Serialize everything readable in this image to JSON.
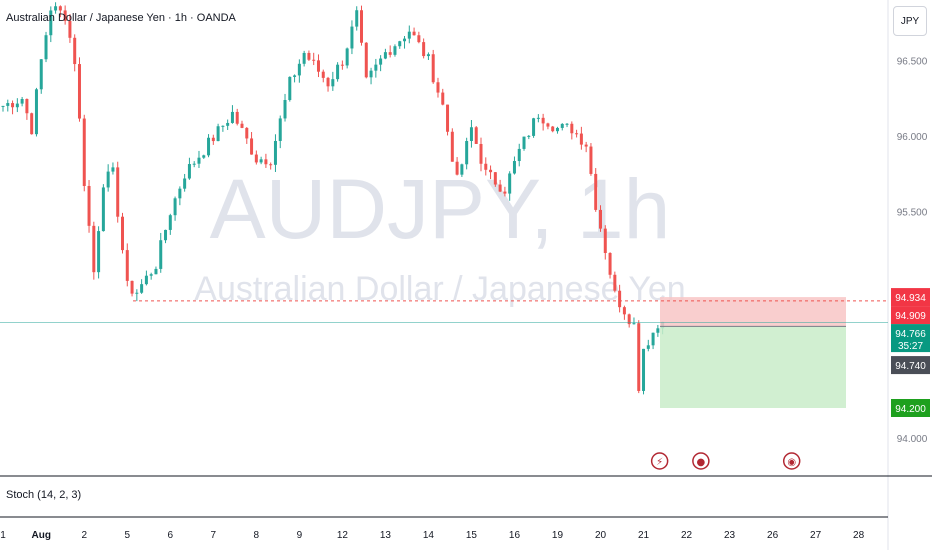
{
  "header": {
    "title": "Australian Dollar / Japanese Yen · 1h · OANDA"
  },
  "currency_button": {
    "label": "JPY"
  },
  "indicator": {
    "label": "Stoch (14, 2, 3)"
  },
  "colors": {
    "up": "#26a69a",
    "down": "#ef5350",
    "watermark": "#e0e3eb",
    "stop_zone": "#f8c5c5",
    "target_zone": "#c9ecc9",
    "dashed_line": "#ef5350",
    "current_line": "#26a69a",
    "label_red": "#f23645",
    "label_teal": "#089981",
    "label_dark": "#4a4e57",
    "label_green": "#1ea01e"
  },
  "chart_data": {
    "type": "candlestick",
    "symbol": "AUDJPY",
    "interval": "1h",
    "watermark_symbol": "AUDJPY, 1h",
    "watermark_name": "Australian Dollar / Japanese Yen",
    "y_ticks": [
      "96.500",
      "96.000",
      "95.500",
      "94.000"
    ],
    "y_tick_values": [
      96.5,
      96.0,
      95.5,
      94.0
    ],
    "ylim": [
      93.75,
      96.9
    ],
    "x_ticks": [
      "1",
      "Aug",
      "2",
      "5",
      "6",
      "7",
      "8",
      "9",
      "12",
      "13",
      "14",
      "15",
      "16",
      "19",
      "20",
      "21",
      "22",
      "23",
      "26",
      "27",
      "28"
    ],
    "x_tick_indices": [
      0,
      8,
      17,
      26,
      35,
      44,
      53,
      62,
      71,
      80,
      89,
      98,
      107,
      116,
      125,
      134,
      143,
      152,
      161,
      170,
      179
    ],
    "approx_path": [
      [
        0,
        96.2
      ],
      [
        4,
        96.25
      ],
      [
        6,
        96.05
      ],
      [
        8,
        96.5
      ],
      [
        10,
        96.85
      ],
      [
        13,
        96.8
      ],
      [
        15,
        96.5
      ],
      [
        17,
        95.7
      ],
      [
        19,
        95.1
      ],
      [
        21,
        95.7
      ],
      [
        23,
        95.75
      ],
      [
        26,
        95.0
      ],
      [
        28,
        94.97
      ],
      [
        32,
        95.15
      ],
      [
        35,
        95.5
      ],
      [
        38,
        95.75
      ],
      [
        43,
        95.95
      ],
      [
        48,
        96.15
      ],
      [
        53,
        95.85
      ],
      [
        56,
        95.85
      ],
      [
        60,
        96.35
      ],
      [
        63,
        96.55
      ],
      [
        68,
        96.35
      ],
      [
        71,
        96.5
      ],
      [
        74,
        96.8
      ],
      [
        76,
        96.35
      ],
      [
        80,
        96.55
      ],
      [
        85,
        96.7
      ],
      [
        89,
        96.5
      ],
      [
        92,
        96.2
      ],
      [
        95,
        95.7
      ],
      [
        98,
        96.05
      ],
      [
        101,
        95.75
      ],
      [
        105,
        95.65
      ],
      [
        108,
        95.9
      ],
      [
        112,
        96.15
      ],
      [
        116,
        96.05
      ],
      [
        119,
        96.05
      ],
      [
        122,
        95.95
      ],
      [
        124,
        95.55
      ],
      [
        126,
        95.25
      ],
      [
        128,
        94.95
      ],
      [
        130,
        94.85
      ],
      [
        132,
        94.75
      ],
      [
        133,
        94.35
      ],
      [
        134,
        94.6
      ],
      [
        136,
        94.7
      ],
      [
        138,
        94.77
      ]
    ],
    "levels": {
      "support_dashed": 94.909,
      "current_price": 94.766,
      "stop": 94.934,
      "entry": 94.74,
      "target": 94.2
    },
    "price_labels": [
      {
        "text": "94.934",
        "value": 94.934,
        "style": "red"
      },
      {
        "text": "94.909",
        "value": 94.909,
        "style": "red"
      },
      {
        "text": "94.766",
        "value": 94.766,
        "style": "teal"
      },
      {
        "text": "35:27",
        "value": 94.71,
        "style": "teal"
      },
      {
        "text": "94.740",
        "value": 94.74,
        "style": "dark"
      },
      {
        "text": "94.200",
        "value": 94.2,
        "style": "green"
      }
    ],
    "event_icons": [
      {
        "name": "lightning-event-icon",
        "index": 138,
        "symbol": "⚡"
      },
      {
        "name": "red-dot-event-icon",
        "index": 146,
        "symbol": "●"
      },
      {
        "name": "globe-event-icon",
        "index": 165,
        "symbol": "◉"
      }
    ]
  }
}
